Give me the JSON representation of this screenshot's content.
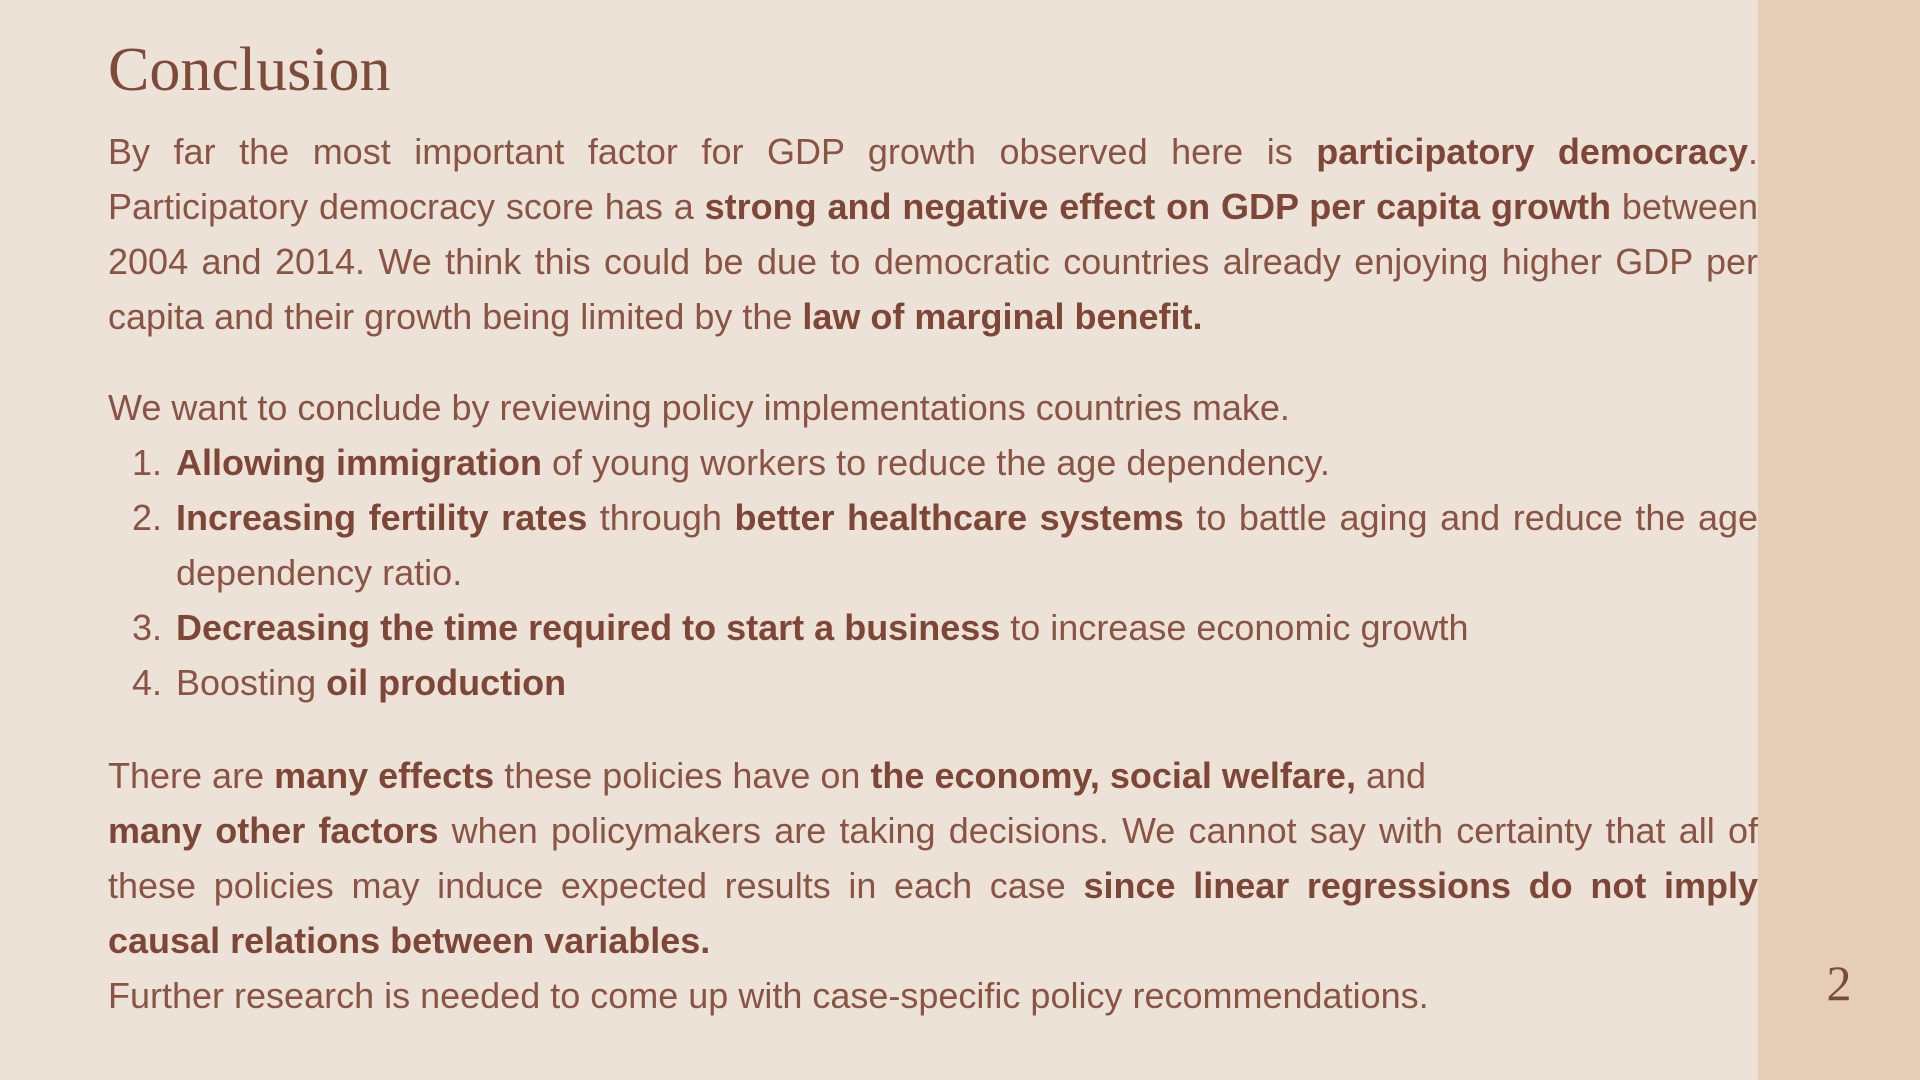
{
  "slide": {
    "title": "Conclusion",
    "page_number": "2"
  },
  "para1": {
    "t1": "By far the most important factor for GDP growth observed here is ",
    "b1": "participatory democracy",
    "t2": ". Participatory democracy score has a ",
    "b2": "strong and negative effect on GDP per capita growth",
    "t3": " between 2004 and 2014. We think this could be due to democratic countries already enjoying higher GDP per capita   and their growth being limited by the ",
    "b3": "law of marginal benefit."
  },
  "para2": {
    "lead": "We want to conclude by reviewing policy implementations countries make.",
    "items": [
      {
        "b1": "Allowing immigration",
        "t1": " of young workers to reduce the age dependency."
      },
      {
        "b1": "Increasing fertility rates",
        "t1": " through ",
        "b2": "better healthcare systems",
        "t2": " to battle aging and reduce the age dependency ratio."
      },
      {
        "b1": "Decreasing the time required to start a business",
        "t1": " to increase economic growth"
      },
      {
        "t0": "Boosting ",
        "b1": "oil production"
      }
    ]
  },
  "para3": {
    "t1": "There are ",
    "b1": "many effects",
    "t2": " these policies have on ",
    "b2": "the economy, social welfare,",
    "t3": " and ",
    "b3": "many other factors",
    "t4": " when policymakers are taking decisions. We cannot say with certainty that all of these policies may induce expected results in each case ",
    "b4": "since linear regressions do not imply causal relations between variables.",
    "t5": "Further research is needed to come up with case-specific policy recommendations."
  },
  "colors": {
    "background": "#ede2d7",
    "sidebar": "#e5cdb6",
    "text": "#8a5444",
    "emphasis": "#7e4636"
  }
}
